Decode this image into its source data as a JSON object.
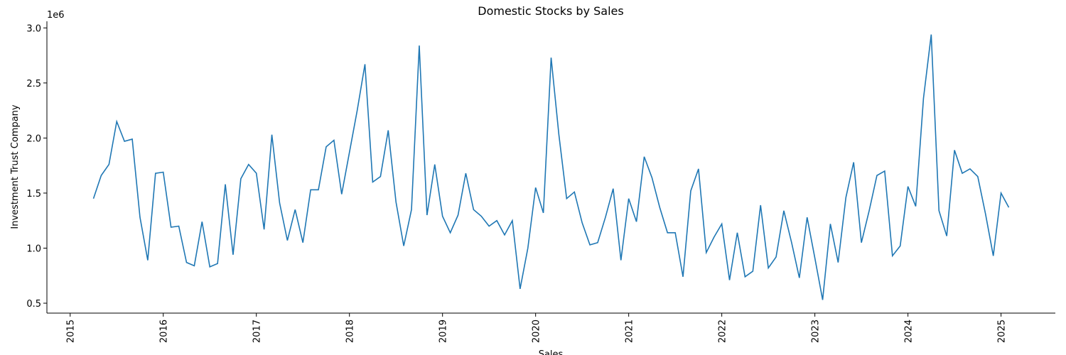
{
  "chart_data": {
    "type": "line",
    "title": "Domestic Stocks by Sales",
    "xlabel": "Sales",
    "ylabel": "Investment Trust Company",
    "y_offset_label": "1e6",
    "x": [
      "2015-04",
      "2015-05",
      "2015-06",
      "2015-07",
      "2015-08",
      "2015-09",
      "2015-10",
      "2015-11",
      "2015-12",
      "2016-01",
      "2016-02",
      "2016-03",
      "2016-04",
      "2016-05",
      "2016-06",
      "2016-07",
      "2016-08",
      "2016-09",
      "2016-10",
      "2016-11",
      "2016-12",
      "2017-01",
      "2017-02",
      "2017-03",
      "2017-04",
      "2017-05",
      "2017-06",
      "2017-07",
      "2017-08",
      "2017-09",
      "2017-10",
      "2017-11",
      "2017-12",
      "2018-01",
      "2018-02",
      "2018-03",
      "2018-04",
      "2018-05",
      "2018-06",
      "2018-07",
      "2018-08",
      "2018-09",
      "2018-10",
      "2018-11",
      "2018-12",
      "2019-01",
      "2019-02",
      "2019-03",
      "2019-04",
      "2019-05",
      "2019-06",
      "2019-07",
      "2019-08",
      "2019-09",
      "2019-10",
      "2019-11",
      "2019-12",
      "2020-01",
      "2020-02",
      "2020-03",
      "2020-04",
      "2020-05",
      "2020-06",
      "2020-07",
      "2020-08",
      "2020-09",
      "2020-10",
      "2020-11",
      "2020-12",
      "2021-01",
      "2021-02",
      "2021-03",
      "2021-04",
      "2021-05",
      "2021-06",
      "2021-07",
      "2021-08",
      "2021-09",
      "2021-10",
      "2021-11",
      "2021-12",
      "2022-01",
      "2022-02",
      "2022-03",
      "2022-04",
      "2022-05",
      "2022-06",
      "2022-07",
      "2022-08",
      "2022-09",
      "2022-10",
      "2022-11",
      "2022-12",
      "2023-01",
      "2023-02",
      "2023-03",
      "2023-04",
      "2023-05",
      "2023-06",
      "2023-07",
      "2023-08",
      "2023-09",
      "2023-10",
      "2023-11",
      "2023-12",
      "2024-01",
      "2024-02",
      "2024-03",
      "2024-04",
      "2024-05",
      "2024-06",
      "2024-07",
      "2024-08",
      "2024-09",
      "2024-10",
      "2024-11",
      "2024-12",
      "2025-01",
      "2025-02"
    ],
    "series": [
      {
        "name": "Investment Trust Company",
        "color": "#1f77b4",
        "values": [
          1.45,
          1.66,
          1.76,
          2.15,
          1.97,
          1.99,
          1.28,
          0.89,
          1.68,
          1.69,
          1.19,
          1.2,
          0.87,
          0.84,
          1.24,
          0.83,
          0.86,
          1.58,
          0.94,
          1.63,
          1.76,
          1.68,
          1.17,
          2.03,
          1.41,
          1.07,
          1.35,
          1.05,
          1.53,
          1.53,
          1.92,
          1.98,
          1.49,
          1.87,
          2.25,
          2.67,
          1.6,
          1.65,
          2.07,
          1.42,
          1.02,
          1.35,
          2.84,
          1.3,
          1.76,
          1.29,
          1.14,
          1.3,
          1.68,
          1.35,
          1.29,
          1.2,
          1.25,
          1.12,
          1.25,
          0.63,
          1.0,
          1.55,
          1.32,
          2.73,
          2.03,
          1.45,
          1.51,
          1.23,
          1.03,
          1.05,
          1.28,
          1.54,
          0.89,
          1.45,
          1.24,
          1.83,
          1.64,
          1.37,
          1.14,
          1.14,
          0.74,
          1.52,
          1.72,
          0.96,
          1.1,
          1.22,
          0.71,
          1.14,
          0.74,
          0.79,
          1.39,
          0.82,
          0.92,
          1.34,
          1.05,
          0.73,
          1.28,
          0.91,
          0.53,
          1.22,
          0.87,
          1.46,
          1.78,
          1.05,
          1.34,
          1.66,
          1.7,
          0.93,
          1.02,
          1.56,
          1.38,
          2.36,
          2.94,
          1.34,
          1.11,
          1.89,
          1.68,
          1.72,
          1.65,
          1.31,
          0.93,
          1.5,
          1.37
        ]
      }
    ],
    "xlim": [
      "2014-10",
      "2025-08"
    ],
    "xticks": [
      "2015",
      "2016",
      "2017",
      "2018",
      "2019",
      "2020",
      "2021",
      "2022",
      "2023",
      "2024",
      "2025"
    ],
    "ylim": [
      0.41,
      3.06
    ],
    "yticks": [
      0.5,
      {
        "value": 1,
        "label": "1.0"
      },
      1.5,
      {
        "value": 2,
        "label": "2.0"
      },
      2.5,
      {
        "value": 3,
        "label": "3.0"
      }
    ]
  }
}
